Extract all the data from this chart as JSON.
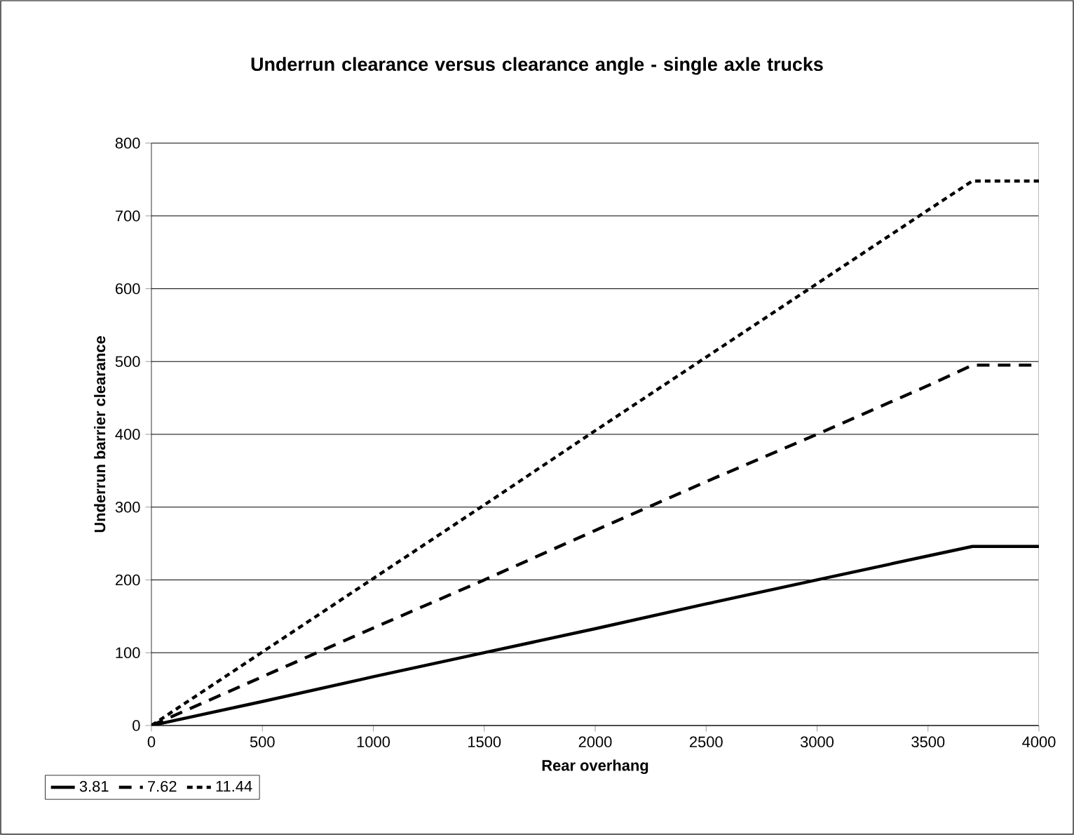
{
  "chart_data": {
    "type": "line",
    "title": "Underrun clearance versus clearance angle - single axle trucks",
    "xlabel": "Rear overhang",
    "ylabel": "Underrun barrier clearance",
    "x": [
      0,
      500,
      1000,
      1500,
      2000,
      2500,
      3000,
      3500,
      3700,
      4000
    ],
    "series": [
      {
        "name": "3.81",
        "color": "#000000",
        "line_style": "solid",
        "values": [
          0,
          33,
          67,
          100,
          133,
          167,
          200,
          233,
          246,
          246
        ]
      },
      {
        "name": "7.62",
        "color": "#000000",
        "line_style": "dashed",
        "values": [
          0,
          67,
          134,
          200,
          268,
          335,
          400,
          467,
          495,
          495
        ]
      },
      {
        "name": "11.44",
        "color": "#000000",
        "line_style": "dotted",
        "values": [
          0,
          101,
          202,
          303,
          405,
          506,
          607,
          708,
          748,
          748
        ]
      }
    ],
    "xlim": [
      0,
      4000
    ],
    "ylim": [
      0,
      800
    ],
    "xticks": [
      0,
      500,
      1000,
      1500,
      2000,
      2500,
      3000,
      3500,
      4000
    ],
    "yticks": [
      0,
      100,
      200,
      300,
      400,
      500,
      600,
      700,
      800
    ],
    "grid": "y",
    "legend": "bottom left",
    "marker": "none"
  }
}
